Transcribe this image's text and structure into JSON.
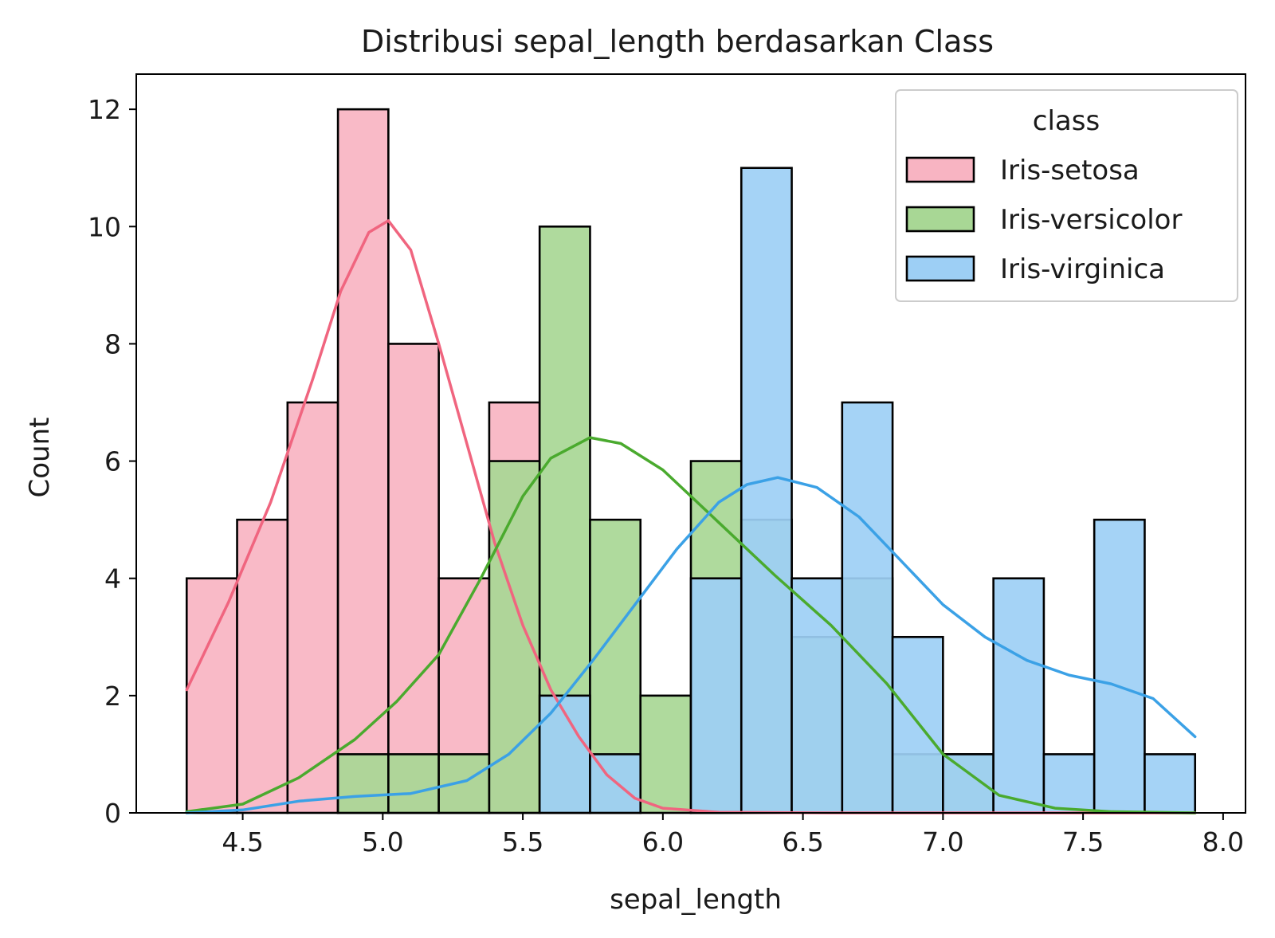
{
  "chart_data": {
    "type": "bar",
    "subtype": "overlaid-histogram-with-kde",
    "title": "Distribusi sepal_length berdasarkan Class",
    "xlabel": "sepal_length",
    "ylabel": "Count",
    "xlim": [
      4.12,
      8.08
    ],
    "ylim": [
      0,
      12.6
    ],
    "xticks": [
      4.5,
      5.0,
      5.5,
      6.0,
      6.5,
      7.0,
      7.5,
      8.0
    ],
    "xtick_labels": [
      "4.5",
      "5.0",
      "5.5",
      "6.0",
      "6.5",
      "7.0",
      "7.5",
      "8.0"
    ],
    "yticks": [
      0,
      2,
      4,
      6,
      8,
      10,
      12
    ],
    "ytick_labels": [
      "0",
      "2",
      "4",
      "6",
      "8",
      "10",
      "12"
    ],
    "grid": false,
    "bin_edges": [
      4.3,
      4.48,
      4.66,
      4.84,
      5.02,
      5.2,
      5.38,
      5.56,
      5.74,
      5.92,
      6.1,
      6.28,
      6.46,
      6.64,
      6.82,
      7.0,
      7.18,
      7.36,
      7.54,
      7.72,
      7.9
    ],
    "legend": {
      "title": "class",
      "position": "top-right"
    },
    "series": [
      {
        "name": "Iris-setosa",
        "fill": "#f8b4c2",
        "line": "#f0657f",
        "counts": [
          4,
          5,
          7,
          12,
          8,
          4,
          7,
          0,
          0,
          0,
          0,
          0,
          0,
          0,
          0,
          0,
          0,
          0,
          0,
          0
        ],
        "kde": [
          [
            4.3,
            2.1
          ],
          [
            4.45,
            3.6
          ],
          [
            4.6,
            5.3
          ],
          [
            4.75,
            7.4
          ],
          [
            4.85,
            8.9
          ],
          [
            4.95,
            9.9
          ],
          [
            5.02,
            10.1
          ],
          [
            5.1,
            9.6
          ],
          [
            5.2,
            8.0
          ],
          [
            5.3,
            6.3
          ],
          [
            5.4,
            4.6
          ],
          [
            5.5,
            3.2
          ],
          [
            5.6,
            2.1
          ],
          [
            5.7,
            1.3
          ],
          [
            5.8,
            0.65
          ],
          [
            5.9,
            0.25
          ],
          [
            6.0,
            0.08
          ],
          [
            6.2,
            0.01
          ],
          [
            6.6,
            0.0
          ],
          [
            7.9,
            0.0
          ]
        ]
      },
      {
        "name": "Iris-versicolor",
        "fill": "#a8d795",
        "line": "#4aaa2e",
        "counts": [
          0,
          0,
          0,
          1,
          1,
          1,
          6,
          10,
          5,
          2,
          6,
          5,
          3,
          4,
          1,
          1,
          0,
          0,
          0,
          0
        ],
        "kde": [
          [
            4.3,
            0.02
          ],
          [
            4.5,
            0.15
          ],
          [
            4.7,
            0.6
          ],
          [
            4.9,
            1.25
          ],
          [
            5.05,
            1.9
          ],
          [
            5.2,
            2.7
          ],
          [
            5.35,
            4.0
          ],
          [
            5.5,
            5.4
          ],
          [
            5.6,
            6.05
          ],
          [
            5.74,
            6.4
          ],
          [
            5.85,
            6.3
          ],
          [
            6.0,
            5.85
          ],
          [
            6.2,
            4.95
          ],
          [
            6.4,
            4.05
          ],
          [
            6.6,
            3.2
          ],
          [
            6.8,
            2.2
          ],
          [
            7.0,
            1.0
          ],
          [
            7.2,
            0.3
          ],
          [
            7.4,
            0.08
          ],
          [
            7.6,
            0.02
          ],
          [
            7.9,
            0.0
          ]
        ]
      },
      {
        "name": "Iris-virginica",
        "fill": "#9dcff5",
        "line": "#3ba1e6",
        "counts": [
          0,
          0,
          0,
          0,
          0,
          0,
          0,
          2,
          1,
          0,
          4,
          11,
          4,
          7,
          3,
          1,
          4,
          1,
          5,
          1
        ],
        "kde": [
          [
            4.3,
            0.0
          ],
          [
            4.5,
            0.05
          ],
          [
            4.7,
            0.2
          ],
          [
            4.9,
            0.28
          ],
          [
            5.1,
            0.33
          ],
          [
            5.3,
            0.55
          ],
          [
            5.45,
            1.0
          ],
          [
            5.6,
            1.7
          ],
          [
            5.75,
            2.6
          ],
          [
            5.9,
            3.55
          ],
          [
            6.05,
            4.5
          ],
          [
            6.2,
            5.3
          ],
          [
            6.3,
            5.6
          ],
          [
            6.41,
            5.72
          ],
          [
            6.55,
            5.55
          ],
          [
            6.7,
            5.05
          ],
          [
            6.85,
            4.3
          ],
          [
            7.0,
            3.55
          ],
          [
            7.15,
            3.0
          ],
          [
            7.3,
            2.6
          ],
          [
            7.45,
            2.35
          ],
          [
            7.6,
            2.2
          ],
          [
            7.75,
            1.95
          ],
          [
            7.9,
            1.3
          ]
        ]
      }
    ]
  }
}
